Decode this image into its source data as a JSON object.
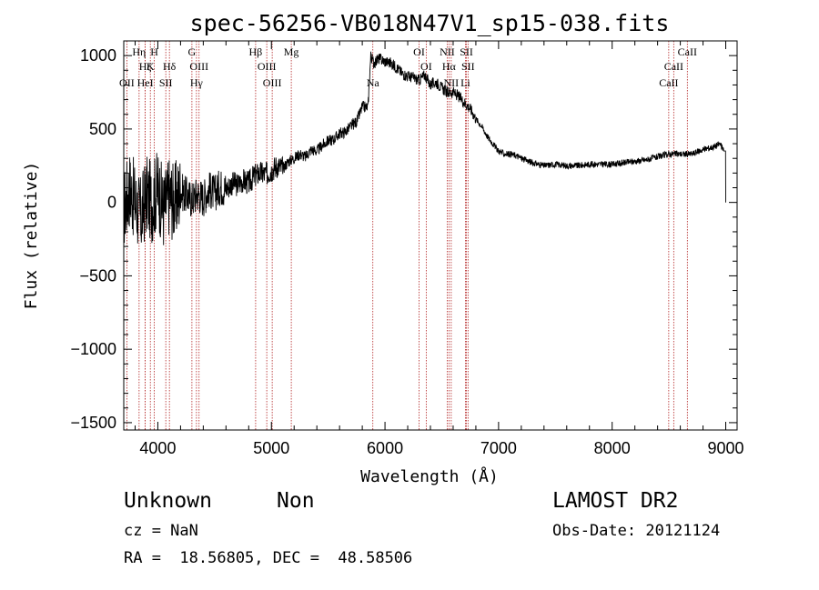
{
  "chart_data": {
    "type": "line",
    "title": "spec-56256-VB018N47V1_sp15-038.fits",
    "xlabel": "Wavelength (Å)",
    "ylabel": "Flux (relative)",
    "xlim": [
      3700,
      9100
    ],
    "ylim": [
      -1550,
      1100
    ],
    "x_ticks": [
      4000,
      5000,
      6000,
      7000,
      8000,
      9000
    ],
    "y_ticks": [
      -1500,
      -1000,
      -500,
      0,
      500,
      1000
    ],
    "x_tick_labels": [
      "4000",
      "5000",
      "6000",
      "7000",
      "8000",
      "9000"
    ],
    "y_tick_labels": [
      "−1500",
      "−1000",
      "−500",
      "0",
      "500",
      "1000"
    ],
    "grid": false,
    "series": [
      {
        "color": "#000000",
        "x": [
          3700,
          3750,
          3800,
          3850,
          3900,
          3950,
          4000,
          4050,
          4100,
          4150,
          4200,
          4250,
          4300,
          4350,
          4400,
          4450,
          4500,
          4550,
          4600,
          4650,
          4700,
          4750,
          4800,
          4850,
          4900,
          4950,
          5000,
          5050,
          5100,
          5150,
          5200,
          5250,
          5300,
          5350,
          5400,
          5450,
          5500,
          5550,
          5600,
          5650,
          5700,
          5750,
          5800,
          5850,
          5875,
          5900,
          5950,
          6000,
          6050,
          6100,
          6150,
          6200,
          6250,
          6300,
          6350,
          6400,
          6450,
          6500,
          6550,
          6600,
          6650,
          6700,
          6750,
          6800,
          6850,
          6900,
          6950,
          7000,
          7050,
          7100,
          7150,
          7200,
          7300,
          7400,
          7500,
          7600,
          7700,
          7800,
          7900,
          8000,
          8100,
          8200,
          8300,
          8400,
          8500,
          8600,
          8700,
          8800,
          8900,
          8950,
          8980,
          9000
        ],
        "y": [
          -50,
          100,
          0,
          -100,
          50,
          0,
          100,
          -50,
          50,
          0,
          80,
          50,
          20,
          60,
          30,
          90,
          60,
          110,
          90,
          130,
          120,
          150,
          130,
          180,
          200,
          190,
          220,
          250,
          230,
          280,
          300,
          330,
          310,
          360,
          350,
          390,
          420,
          430,
          470,
          480,
          520,
          550,
          650,
          650,
          1000,
          950,
          980,
          960,
          950,
          920,
          880,
          860,
          850,
          830,
          870,
          800,
          820,
          780,
          750,
          750,
          720,
          680,
          640,
          570,
          520,
          450,
          400,
          350,
          330,
          330,
          320,
          300,
          270,
          250,
          260,
          250,
          250,
          260,
          260,
          260,
          270,
          280,
          290,
          310,
          330,
          330,
          330,
          360,
          380,
          400,
          350,
          0
        ]
      }
    ],
    "lines_color": "#b22222",
    "spectral_lines": [
      {
        "label": "Hη",
        "x": 3835,
        "row": 0
      },
      {
        "label": "H",
        "x": 3969,
        "row": 0
      },
      {
        "label": "G",
        "x": 4300,
        "row": 0
      },
      {
        "label": "Hβ",
        "x": 4861,
        "row": 0
      },
      {
        "label": "Mg",
        "x": 5175,
        "row": 0
      },
      {
        "label": "OI",
        "x": 6300,
        "row": 0
      },
      {
        "label": "NII",
        "x": 6548,
        "row": 0
      },
      {
        "label": "SII",
        "x": 6717,
        "row": 0
      },
      {
        "label": "CaII",
        "x": 8662,
        "row": 0
      },
      {
        "label": "Hζ",
        "x": 3889,
        "row": 1
      },
      {
        "label": "K",
        "x": 3934,
        "row": 1
      },
      {
        "label": "Hδ",
        "x": 4102,
        "row": 1
      },
      {
        "label": "OIII",
        "x": 4363,
        "row": 1
      },
      {
        "label": "OIII",
        "x": 4959,
        "row": 1
      },
      {
        "label": "OI",
        "x": 6363,
        "row": 1
      },
      {
        "label": "Hα",
        "x": 6563,
        "row": 1
      },
      {
        "label": "SII",
        "x": 6731,
        "row": 1
      },
      {
        "label": "CaII",
        "x": 8542,
        "row": 1
      },
      {
        "label": "OII",
        "x": 3727,
        "row": 2
      },
      {
        "label": "HeI",
        "x": 3889,
        "row": 2
      },
      {
        "label": "SII",
        "x": 4070,
        "row": 2
      },
      {
        "label": "Hγ",
        "x": 4340,
        "row": 2
      },
      {
        "label": "OIII",
        "x": 5007,
        "row": 2
      },
      {
        "label": "Na",
        "x": 5893,
        "row": 2
      },
      {
        "label": "NII",
        "x": 6583,
        "row": 2
      },
      {
        "label": "Li",
        "x": 6708,
        "row": 2
      },
      {
        "label": "CaII",
        "x": 8498,
        "row": 2
      }
    ]
  },
  "info": {
    "object_class": "Unknown",
    "subclass": "Non",
    "survey": "LAMOST DR2",
    "cz": "cz = NaN",
    "obs_date": "Obs-Date: 20121124",
    "coords": "RA =  18.56805, DEC =  48.58506"
  }
}
